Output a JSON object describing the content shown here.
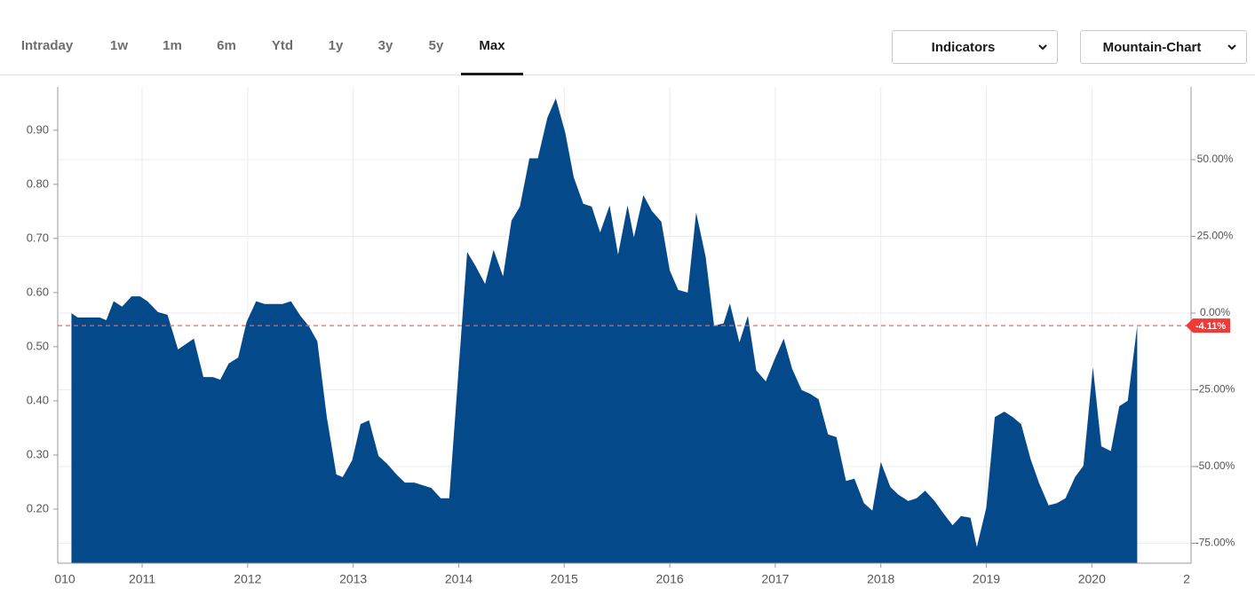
{
  "tabs": [
    "Intraday",
    "1w",
    "1m",
    "6m",
    "Ytd",
    "1y",
    "3y",
    "5y",
    "Max"
  ],
  "active_tab": "Max",
  "dropdowns": [
    "Indicators",
    "Mountain-Chart"
  ],
  "chart_data": {
    "type": "area",
    "color": "#04498a",
    "x": [
      2010.33,
      2010.39,
      2010.46,
      2010.6,
      2010.66,
      2010.73,
      2010.81,
      2010.9,
      2010.98,
      2011.05,
      2011.15,
      2011.24,
      2011.34,
      2011.49,
      2011.58,
      2011.67,
      2011.74,
      2011.82,
      2011.91,
      2011.99,
      2012.08,
      2012.16,
      2012.25,
      2012.33,
      2012.41,
      2012.5,
      2012.58,
      2012.66,
      2012.75,
      2012.84,
      2012.9,
      2012.99,
      2013.07,
      2013.15,
      2013.24,
      2013.32,
      2013.41,
      2013.49,
      2013.58,
      2013.66,
      2013.74,
      2013.83,
      2013.91,
      2014.08,
      2014.16,
      2014.25,
      2014.33,
      2014.42,
      2014.5,
      2014.58,
      2014.67,
      2014.75,
      2014.84,
      2014.92,
      2015.01,
      2015.09,
      2015.18,
      2015.26,
      2015.34,
      2015.43,
      2015.51,
      2015.6,
      2015.66,
      2015.75,
      2015.83,
      2015.92,
      2016.0,
      2016.08,
      2016.17,
      2016.25,
      2016.34,
      2016.42,
      2016.51,
      2016.57,
      2016.66,
      2016.74,
      2016.82,
      2016.91,
      2016.99,
      2017.08,
      2017.16,
      2017.25,
      2017.33,
      2017.41,
      2017.5,
      2017.58,
      2017.67,
      2017.75,
      2017.84,
      2017.92,
      2018.0,
      2018.09,
      2018.17,
      2018.26,
      2018.34,
      2018.42,
      2018.51,
      2018.59,
      2018.68,
      2018.76,
      2018.85,
      2018.91,
      2019.0,
      2019.08,
      2019.17,
      2019.25,
      2019.33,
      2019.42,
      2019.5,
      2019.59,
      2019.67,
      2019.75,
      2019.84,
      2019.92,
      2020.01,
      2020.09,
      2020.18,
      2020.26,
      2020.34,
      2020.43
    ],
    "values": [
      0.562,
      0.554,
      0.554,
      0.554,
      0.549,
      0.584,
      0.574,
      0.593,
      0.593,
      0.584,
      0.564,
      0.559,
      0.495,
      0.515,
      0.444,
      0.444,
      0.439,
      0.469,
      0.48,
      0.546,
      0.584,
      0.579,
      0.579,
      0.579,
      0.584,
      0.557,
      0.538,
      0.51,
      0.37,
      0.264,
      0.259,
      0.29,
      0.357,
      0.364,
      0.298,
      0.284,
      0.264,
      0.249,
      0.249,
      0.244,
      0.239,
      0.22,
      0.22,
      0.675,
      0.649,
      0.616,
      0.679,
      0.63,
      0.733,
      0.759,
      0.848,
      0.848,
      0.923,
      0.959,
      0.895,
      0.813,
      0.764,
      0.759,
      0.711,
      0.761,
      0.67,
      0.761,
      0.702,
      0.78,
      0.751,
      0.731,
      0.641,
      0.605,
      0.6,
      0.748,
      0.666,
      0.539,
      0.543,
      0.58,
      0.508,
      0.557,
      0.456,
      0.436,
      0.475,
      0.515,
      0.459,
      0.42,
      0.413,
      0.403,
      0.338,
      0.333,
      0.252,
      0.256,
      0.211,
      0.197,
      0.287,
      0.241,
      0.226,
      0.215,
      0.22,
      0.234,
      0.215,
      0.193,
      0.17,
      0.187,
      0.184,
      0.13,
      0.203,
      0.37,
      0.38,
      0.37,
      0.357,
      0.292,
      0.248,
      0.207,
      0.211,
      0.22,
      0.259,
      0.28,
      0.462,
      0.316,
      0.307,
      0.39,
      0.4,
      0.539
    ],
    "xlim": [
      2010.2,
      2020.94
    ],
    "xticks": [
      {
        "value": 2010,
        "label": "010"
      },
      2011,
      2012,
      2013,
      2014,
      2015,
      2016,
      2017,
      2018,
      2019,
      2020,
      {
        "value": 2021,
        "label": "2"
      }
    ],
    "ylim": [
      0.1,
      0.98
    ],
    "yticks": [
      {
        "value": 0.2,
        "label": "0.20"
      },
      {
        "value": 0.3,
        "label": "0.30"
      },
      {
        "value": 0.4,
        "label": "0.40"
      },
      {
        "value": 0.5,
        "label": "0.50"
      },
      {
        "value": 0.6,
        "label": "0.60"
      },
      {
        "value": 0.7,
        "label": "0.70"
      },
      {
        "value": 0.8,
        "label": "0.80"
      },
      {
        "value": 0.9,
        "label": "0.90"
      }
    ],
    "y2lim": [
      -81.5,
      73.7
    ],
    "y2ticks": [
      {
        "value": -75,
        "label": "-75.00%"
      },
      {
        "value": -50,
        "label": "-50.00%"
      },
      {
        "value": -25,
        "label": "-25.00%"
      },
      {
        "value": 0,
        "label": "0.00%"
      },
      {
        "value": 25,
        "label": "25.00%"
      },
      {
        "value": 50,
        "label": "50.00%"
      }
    ],
    "last_change_label": "-4.11%",
    "grid": true
  }
}
